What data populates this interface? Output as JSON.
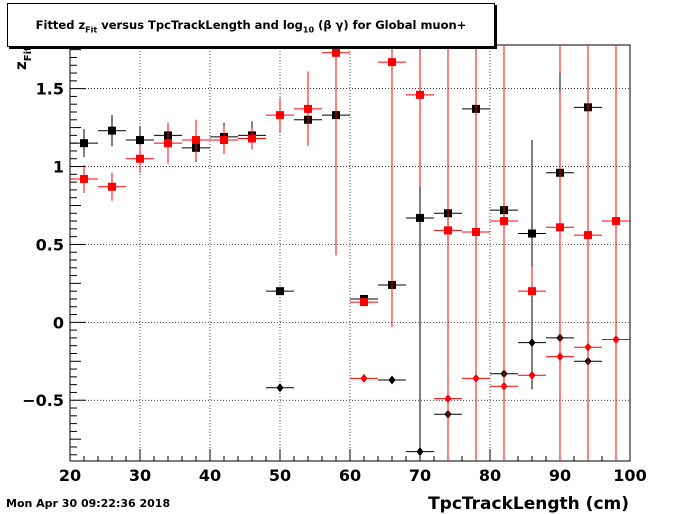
{
  "title": {
    "pre": "Fitted  z",
    "sub1": "Fit",
    "mid": "  versus TpcTrackLength and log",
    "sub2": "10",
    "post": " (β γ) for Global muon+"
  },
  "timestamp": "Mon Apr 30 09:22:36 2018",
  "chart_data": {
    "type": "scatter",
    "xlabel": "TpcTrackLength (cm)",
    "ylabel": "z",
    "ylabel_sub": "Fit",
    "xlim": [
      20,
      100
    ],
    "ylim": [
      -0.89,
      1.78
    ],
    "xticks": [
      20,
      30,
      40,
      50,
      60,
      70,
      80,
      90,
      100
    ],
    "yticks": [
      -0.5,
      0,
      0.5,
      1,
      1.5
    ],
    "ytick_labels": [
      "−0.5",
      "0",
      "0.5",
      "1",
      "1.5"
    ],
    "grid": true,
    "colors": {
      "black": "#000000",
      "red": "#ff0000"
    },
    "series": [
      {
        "marker": "square",
        "color": "#000000",
        "xerr": 2,
        "points": [
          {
            "x": 22,
            "y": 1.15,
            "err": 0.09
          },
          {
            "x": 26,
            "y": 1.23,
            "err": 0.1
          },
          {
            "x": 30,
            "y": 1.17,
            "err": 0.09
          },
          {
            "x": 34,
            "y": 1.2,
            "err": 0.08
          },
          {
            "x": 38,
            "y": 1.12,
            "err": 0.09
          },
          {
            "x": 42,
            "y": 1.19,
            "err": 0.09
          },
          {
            "x": 46,
            "y": 1.2,
            "err": 0.09
          },
          {
            "x": 50,
            "y": 0.2,
            "err": 0
          },
          {
            "x": 54,
            "y": 1.3,
            "err": 0.08
          },
          {
            "x": 58,
            "y": 1.33,
            "err": 0
          },
          {
            "x": 62,
            "y": 0.15,
            "err": 0
          },
          {
            "x": 66,
            "y": 0.24,
            "err": 0.1
          },
          {
            "x": 70,
            "y": 0.67,
            "err": 1.7
          },
          {
            "x": 74,
            "y": 0.7,
            "err": 1.1
          },
          {
            "x": 78,
            "y": 1.37,
            "err": 0
          },
          {
            "x": 82,
            "y": 0.72,
            "err": 0
          },
          {
            "x": 86,
            "y": 0.57,
            "err": 0.6
          },
          {
            "x": 90,
            "y": 0.96,
            "err": 1.7
          },
          {
            "x": 94,
            "y": 1.38,
            "err": 1.7
          }
        ]
      },
      {
        "marker": "square",
        "color": "#ff0000",
        "xerr": 2,
        "points": [
          {
            "x": 22,
            "y": 0.92,
            "err": 0.09
          },
          {
            "x": 26,
            "y": 0.87,
            "err": 0.09
          },
          {
            "x": 30,
            "y": 1.05,
            "err": 0.09
          },
          {
            "x": 34,
            "y": 1.15,
            "err": 0.13
          },
          {
            "x": 38,
            "y": 1.17,
            "err": 0.13
          },
          {
            "x": 42,
            "y": 1.17,
            "err": 0.09
          },
          {
            "x": 46,
            "y": 1.18,
            "err": 0.07
          },
          {
            "x": 50,
            "y": 1.33,
            "err": 0.11
          },
          {
            "x": 54,
            "y": 1.37,
            "err": 0.24
          },
          {
            "x": 58,
            "y": 1.73,
            "err": 1.3
          },
          {
            "x": 62,
            "y": 0.13,
            "err": 0
          },
          {
            "x": 66,
            "y": 1.67,
            "err": 1.7
          },
          {
            "x": 70,
            "y": 1.46,
            "err": 1.7
          },
          {
            "x": 74,
            "y": 0.59,
            "err": 1.7
          },
          {
            "x": 78,
            "y": 0.58,
            "err": 1.4
          },
          {
            "x": 82,
            "y": 0.65,
            "err": 1.7
          },
          {
            "x": 86,
            "y": 0.2,
            "err": 0.16
          },
          {
            "x": 90,
            "y": 0.61,
            "err": 1.7
          },
          {
            "x": 94,
            "y": 0.56,
            "err": 1.7
          },
          {
            "x": 98,
            "y": 0.65,
            "err": 1.7
          }
        ]
      },
      {
        "marker": "diamond",
        "color": "#000000",
        "xerr": 2,
        "points": [
          {
            "x": 50,
            "y": -0.42,
            "err": 0
          },
          {
            "x": 66,
            "y": -0.37,
            "err": 0
          },
          {
            "x": 70,
            "y": -0.83,
            "err": 1.7
          },
          {
            "x": 74,
            "y": -0.59,
            "err": 0
          },
          {
            "x": 82,
            "y": -0.33,
            "err": 0
          },
          {
            "x": 86,
            "y": -0.13,
            "err": 0.3
          },
          {
            "x": 90,
            "y": -0.1,
            "err": 1.7
          },
          {
            "x": 94,
            "y": -0.25,
            "err": 1.7
          }
        ]
      },
      {
        "marker": "diamond",
        "color": "#ff0000",
        "xerr": 2,
        "points": [
          {
            "x": 62,
            "y": -0.36,
            "err": 0
          },
          {
            "x": 74,
            "y": -0.49,
            "err": 1.7
          },
          {
            "x": 78,
            "y": -0.36,
            "err": 1.7
          },
          {
            "x": 82,
            "y": -0.41,
            "err": 1.7
          },
          {
            "x": 86,
            "y": -0.34,
            "err": 0
          },
          {
            "x": 90,
            "y": -0.22,
            "err": 1.7
          },
          {
            "x": 94,
            "y": -0.16,
            "err": 1.7
          },
          {
            "x": 98,
            "y": -0.11,
            "err": 1.7
          }
        ]
      }
    ]
  }
}
